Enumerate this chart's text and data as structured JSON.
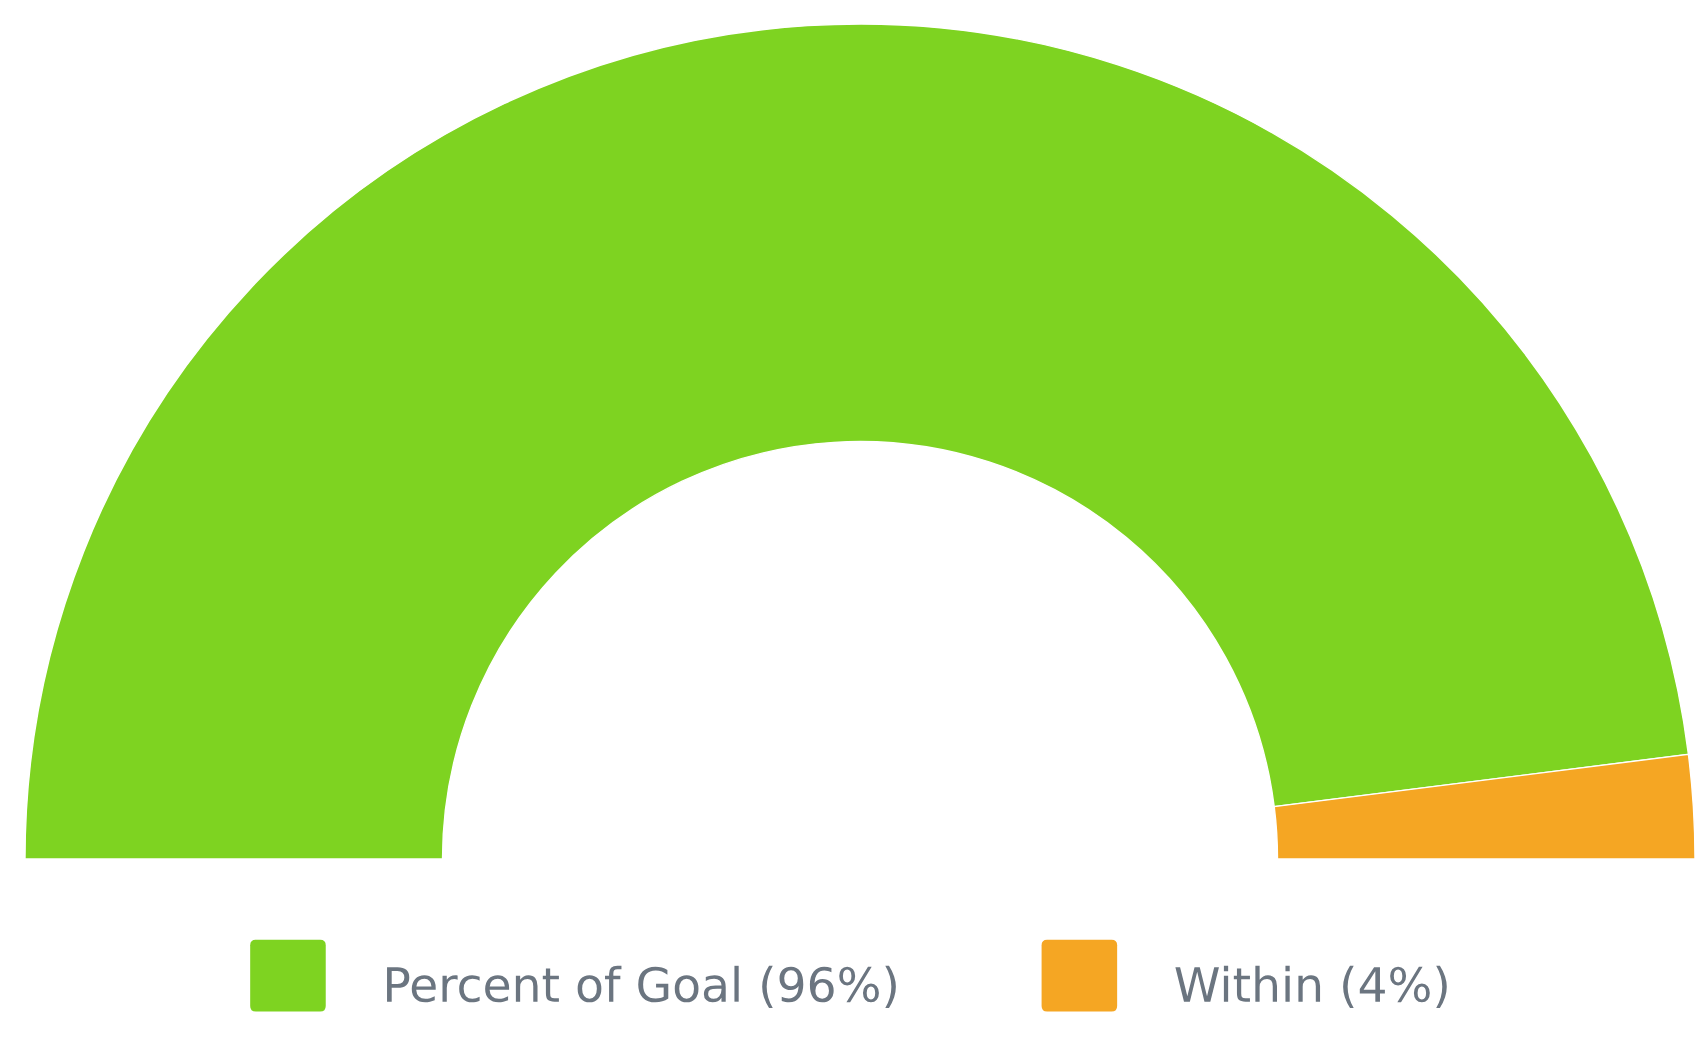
{
  "chart_data": {
    "type": "donut",
    "categories": [
      "Percent of Goal (96%)",
      "Within (4%)"
    ],
    "values": [
      96,
      4
    ],
    "colors": [
      "#7ed321",
      "#f5a623"
    ],
    "legend": "bottom"
  }
}
